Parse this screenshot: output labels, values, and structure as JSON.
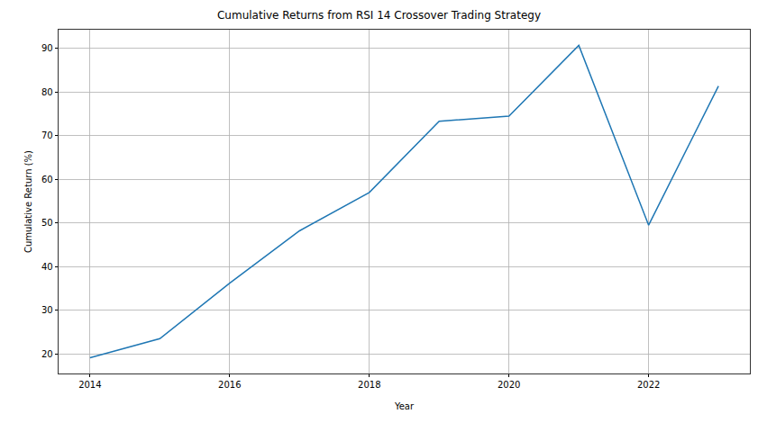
{
  "chart_data": {
    "type": "line",
    "title": "Cumulative Returns from RSI 14 Crossover Trading Strategy",
    "x_label": "Year",
    "y_label": "Cumulative Return (%)",
    "x": [
      2014,
      2015,
      2016,
      2017,
      2018,
      2019,
      2020,
      2021,
      2022,
      2023
    ],
    "values": [
      19.1,
      23.5,
      36.2,
      48.2,
      57.0,
      73.3,
      74.5,
      90.7,
      49.5,
      81.4
    ],
    "color": "#1f77b4",
    "xlim": [
      2013.55,
      2023.45
    ],
    "xticks": [
      2014,
      2016,
      2018,
      2020,
      2022
    ],
    "ylim": [
      15.5,
      94.3
    ],
    "yticks": [
      20,
      30,
      40,
      50,
      60,
      70,
      80,
      90
    ],
    "grid": true
  }
}
